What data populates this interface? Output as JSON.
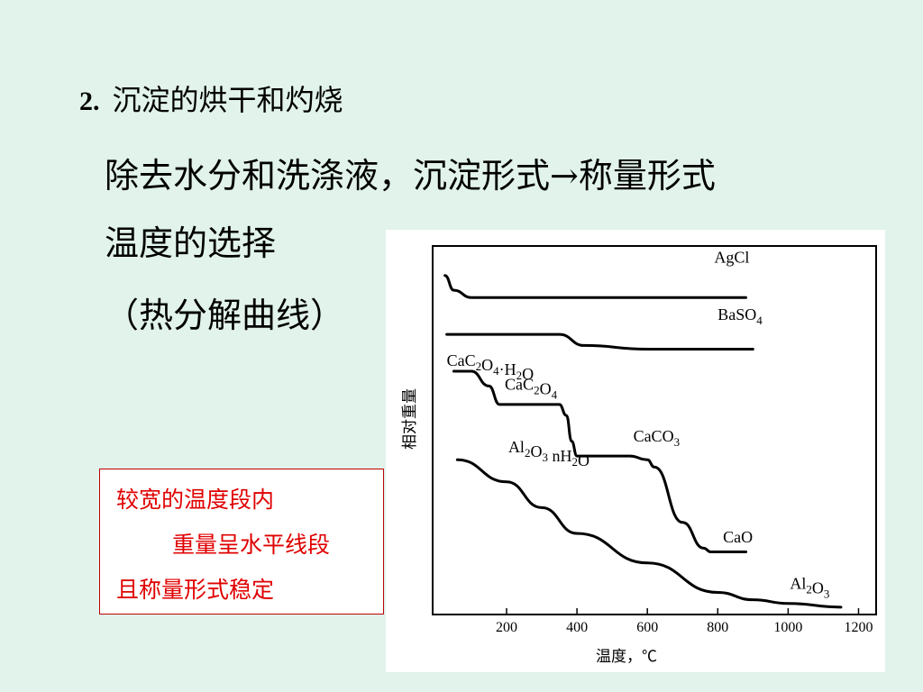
{
  "heading": {
    "number": "2.",
    "text": "沉淀的烘干和灼烧"
  },
  "lines": {
    "line1": "除去水分和洗涤液，沉淀形式→称量形式",
    "line2": "温度的选择",
    "line3": "（热分解曲线）"
  },
  "note": {
    "line1": "较宽的温度段内",
    "line2": "重量呈水平线段",
    "line3": "且称量形式稳定",
    "color": "#E00000",
    "border_color": "#C00000"
  },
  "colors": {
    "background": "#E1F3EA",
    "panel": "#FFFFFF"
  },
  "chart_data": {
    "type": "line",
    "xlabel": "温度，℃",
    "ylabel": "相对重量",
    "xlim": [
      -10,
      1250
    ],
    "ylim": [
      0,
      100
    ],
    "xticks": [
      200,
      400,
      600,
      800,
      1000,
      1200
    ],
    "grid": false,
    "legend": "none",
    "series": [
      {
        "name": "AgCl",
        "label_parts": [
          [
            "AgCl",
            ""
          ]
        ],
        "label_at": [
          790,
          95.5
        ],
        "points": [
          [
            25,
            92
          ],
          [
            50,
            88
          ],
          [
            100,
            86
          ],
          [
            200,
            86
          ],
          [
            400,
            86
          ],
          [
            600,
            86
          ],
          [
            800,
            86
          ],
          [
            880,
            86
          ]
        ]
      },
      {
        "name": "BaSO4",
        "label_parts": [
          [
            "BaSO",
            ""
          ],
          [
            "4",
            "sub"
          ]
        ],
        "label_at": [
          800,
          80
        ],
        "points": [
          [
            30,
            76
          ],
          [
            200,
            76
          ],
          [
            350,
            76
          ],
          [
            420,
            73
          ],
          [
            600,
            72
          ],
          [
            800,
            72
          ],
          [
            900,
            72
          ]
        ]
      },
      {
        "name": "CaC2O4·H2O → CaC2O4 → CaCO3 → CaO",
        "label_parts": [
          [
            "CaC",
            ""
          ],
          [
            "2",
            "sub"
          ],
          [
            "O",
            ""
          ],
          [
            "4",
            "sub"
          ],
          [
            "·H",
            ""
          ],
          [
            "2",
            "sub"
          ],
          [
            "O",
            ""
          ]
        ],
        "label_at": [
          30,
          67.5
        ],
        "points": [
          [
            50,
            66
          ],
          [
            100,
            66
          ],
          [
            150,
            62
          ],
          [
            180,
            57
          ],
          [
            250,
            57
          ],
          [
            350,
            57
          ],
          [
            370,
            54
          ],
          [
            385,
            47
          ],
          [
            400,
            43
          ],
          [
            420,
            43
          ],
          [
            550,
            43
          ],
          [
            600,
            42
          ],
          [
            620,
            40
          ],
          [
            700,
            25
          ],
          [
            760,
            18
          ],
          [
            780,
            17
          ],
          [
            880,
            17
          ]
        ]
      },
      {
        "name": "Al2O3 nH2O → Al2O3",
        "label_parts": [
          [
            "Al",
            ""
          ],
          [
            "2",
            "sub"
          ],
          [
            "O",
            ""
          ],
          [
            "3",
            "sub"
          ],
          [
            " nH",
            ""
          ],
          [
            "2",
            "sub"
          ],
          [
            "O",
            ""
          ]
        ],
        "label_at": [
          205,
          44
        ],
        "points": [
          [
            60,
            42
          ],
          [
            200,
            36
          ],
          [
            300,
            29
          ],
          [
            400,
            22
          ],
          [
            600,
            14
          ],
          [
            800,
            6
          ],
          [
            900,
            4
          ],
          [
            1000,
            3
          ],
          [
            1150,
            2
          ]
        ]
      }
    ],
    "annotations": [
      {
        "text_parts": [
          [
            "CaC",
            ""
          ],
          [
            "2",
            "sub"
          ],
          [
            "O",
            ""
          ],
          [
            "4",
            "sub"
          ]
        ],
        "at": [
          195,
          61
        ]
      },
      {
        "text_parts": [
          [
            "CaCO",
            ""
          ],
          [
            "3",
            "sub"
          ]
        ],
        "at": [
          560,
          47
        ]
      },
      {
        "text_parts": [
          [
            "CaO",
            ""
          ]
        ],
        "at": [
          815,
          19.5
        ]
      },
      {
        "text_parts": [
          [
            "Al",
            ""
          ],
          [
            "2",
            "sub"
          ],
          [
            "O",
            ""
          ],
          [
            "3",
            "sub"
          ]
        ],
        "at": [
          1005,
          7
        ]
      }
    ]
  }
}
